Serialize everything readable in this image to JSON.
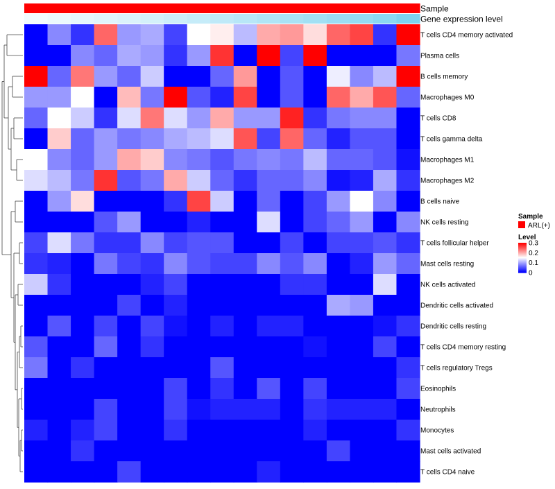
{
  "chart_data": {
    "type": "heatmap",
    "title": "",
    "columns": 17,
    "annotations": [
      {
        "name": "Sample",
        "values": [
          "ARL(+)",
          "ARL(+)",
          "ARL(+)",
          "ARL(+)",
          "ARL(+)",
          "ARL(+)",
          "ARL(+)",
          "ARL(+)",
          "ARL(+)",
          "ARL(+)",
          "ARL(+)",
          "ARL(+)",
          "ARL(+)",
          "ARL(+)",
          "ARL(+)",
          "ARL(+)",
          "ARL(+)"
        ],
        "color": "#ff0000"
      },
      {
        "name": "Gene expression level",
        "values": [
          0.0,
          0.05,
          0.1,
          0.15,
          0.2,
          0.26,
          0.32,
          0.38,
          0.44,
          0.5,
          0.56,
          0.62,
          0.68,
          0.74,
          0.8,
          0.88,
          1.0
        ],
        "color_low": "#f2fbfe",
        "color_high": "#7dd3f0"
      }
    ],
    "rows": [
      "T cells CD4 memory activated",
      "Plasma cells",
      "B cells memory",
      "Macrophages M0",
      "T cells CD8",
      "T cells gamma delta",
      "Macrophages M1",
      "Macrophages M2",
      "B cells naive",
      "NK cells resting",
      "T cells follicular helper",
      "Mast cells resting",
      "NK cells activated",
      "Dendritic cells activated",
      "Dendritic cells resting",
      "T cells CD4 memory resting",
      "T cells regulatory  Tregs",
      "Eosinophils",
      "Neutrophils",
      "Monocytes",
      "Mast cells activated",
      "T cells CD4 naive"
    ],
    "values": [
      [
        0.0,
        0.08,
        0.03,
        0.24,
        0.09,
        0.1,
        0.04,
        0.15,
        0.16,
        0.11,
        0.2,
        0.21,
        0.17,
        0.24,
        0.26,
        0.03,
        0.3
      ],
      [
        0.0,
        0.0,
        0.08,
        0.06,
        0.1,
        0.09,
        0.03,
        0.09,
        0.27,
        0.0,
        0.3,
        0.04,
        0.3,
        0.0,
        0.0,
        0.0,
        0.07
      ],
      [
        0.3,
        0.06,
        0.23,
        0.09,
        0.06,
        0.12,
        0.0,
        0.0,
        0.06,
        0.21,
        0.0,
        0.05,
        0.0,
        0.14,
        0.08,
        0.11,
        0.3
      ],
      [
        0.09,
        0.09,
        0.15,
        0.0,
        0.19,
        0.07,
        0.3,
        0.05,
        0.02,
        0.26,
        0.0,
        0.05,
        0.0,
        0.24,
        0.2,
        0.25,
        0.06
      ],
      [
        0.06,
        0.15,
        0.12,
        0.03,
        0.13,
        0.23,
        0.13,
        0.09,
        0.2,
        0.09,
        0.09,
        0.28,
        0.03,
        0.07,
        0.08,
        0.08,
        0.0
      ],
      [
        0.0,
        0.18,
        0.06,
        0.09,
        0.07,
        0.08,
        0.1,
        0.11,
        0.13,
        0.25,
        0.04,
        0.24,
        0.06,
        0.02,
        0.05,
        0.05,
        0.0
      ],
      [
        0.15,
        0.08,
        0.06,
        0.09,
        0.2,
        0.18,
        0.08,
        0.07,
        0.05,
        0.07,
        0.08,
        0.07,
        0.11,
        0.06,
        0.06,
        0.05,
        0.01
      ],
      [
        0.13,
        0.11,
        0.07,
        0.27,
        0.05,
        0.07,
        0.2,
        0.12,
        0.06,
        0.03,
        0.06,
        0.06,
        0.08,
        0.01,
        0.02,
        0.1,
        0.03
      ],
      [
        0.0,
        0.09,
        0.17,
        0.0,
        0.0,
        0.0,
        0.03,
        0.26,
        0.12,
        0.0,
        0.06,
        0.0,
        0.04,
        0.09,
        0.15,
        0.08,
        0.0
      ],
      [
        0.0,
        0.0,
        0.0,
        0.05,
        0.09,
        0.0,
        0.0,
        0.02,
        0.0,
        0.0,
        0.13,
        0.0,
        0.04,
        0.06,
        0.09,
        0.0,
        0.08
      ],
      [
        0.04,
        0.13,
        0.07,
        0.03,
        0.03,
        0.08,
        0.04,
        0.05,
        0.05,
        0.0,
        0.0,
        0.04,
        0.0,
        0.04,
        0.04,
        0.05,
        0.03
      ],
      [
        0.03,
        0.02,
        0.0,
        0.07,
        0.04,
        0.03,
        0.08,
        0.05,
        0.04,
        0.04,
        0.08,
        0.05,
        0.08,
        0.0,
        0.02,
        0.09,
        0.06
      ],
      [
        0.12,
        0.03,
        0.0,
        0.0,
        0.0,
        0.02,
        0.04,
        0.0,
        0.0,
        0.0,
        0.0,
        0.03,
        0.03,
        0.0,
        0.0,
        0.13,
        0.0
      ],
      [
        0.0,
        0.0,
        0.0,
        0.0,
        0.04,
        0.0,
        0.02,
        0.0,
        0.0,
        0.0,
        0.0,
        0.0,
        0.0,
        0.1,
        0.09,
        0.0,
        0.0
      ],
      [
        0.0,
        0.05,
        0.0,
        0.04,
        0.0,
        0.04,
        0.01,
        0.0,
        0.02,
        0.0,
        0.02,
        0.02,
        0.0,
        0.0,
        0.0,
        0.01,
        0.03
      ],
      [
        0.05,
        0.0,
        0.0,
        0.06,
        0.0,
        0.03,
        0.0,
        0.0,
        0.0,
        0.0,
        0.0,
        0.0,
        0.01,
        0.0,
        0.0,
        0.04,
        0.0
      ],
      [
        0.07,
        0.0,
        0.03,
        0.0,
        0.0,
        0.0,
        0.0,
        0.0,
        0.05,
        0.0,
        0.0,
        0.0,
        0.0,
        0.0,
        0.0,
        0.0,
        0.03
      ],
      [
        0.0,
        0.0,
        0.0,
        0.0,
        0.0,
        0.0,
        0.04,
        0.0,
        0.03,
        0.0,
        0.05,
        0.0,
        0.04,
        0.0,
        0.0,
        0.0,
        0.04
      ],
      [
        0.0,
        0.0,
        0.0,
        0.04,
        0.0,
        0.0,
        0.04,
        0.01,
        0.02,
        0.02,
        0.02,
        0.0,
        0.03,
        0.02,
        0.02,
        0.02,
        0.0
      ],
      [
        0.02,
        0.0,
        0.02,
        0.04,
        0.0,
        0.0,
        0.03,
        0.0,
        0.0,
        0.0,
        0.0,
        0.0,
        0.02,
        0.0,
        0.0,
        0.0,
        0.03
      ],
      [
        0.0,
        0.0,
        0.03,
        0.0,
        0.0,
        0.0,
        0.0,
        0.0,
        0.0,
        0.0,
        0.0,
        0.0,
        0.0,
        0.04,
        0.0,
        0.0,
        0.0
      ],
      [
        0.0,
        0.0,
        0.0,
        0.0,
        0.04,
        0.0,
        0.0,
        0.0,
        0.0,
        0.0,
        0.02,
        0.0,
        0.0,
        0.0,
        0.0,
        0.0,
        0.0
      ]
    ],
    "color_scale": {
      "low": "#0000ff",
      "mid": "#ffffff",
      "high": "#ff0000",
      "min": 0,
      "mid_value": 0.15,
      "max": 0.3
    },
    "legend": {
      "position": "right",
      "sample_title": "Sample",
      "sample_items": [
        {
          "label": "ARL(+)",
          "color": "#ff0000"
        }
      ],
      "level_title": "Level",
      "level_ticks": [
        {
          "label": "0.3",
          "value": 0.3
        },
        {
          "label": "0.2",
          "value": 0.2
        },
        {
          "label": "0.1",
          "value": 0.1
        },
        {
          "label": "0",
          "value": 0
        }
      ]
    },
    "row_dendrogram": true
  }
}
